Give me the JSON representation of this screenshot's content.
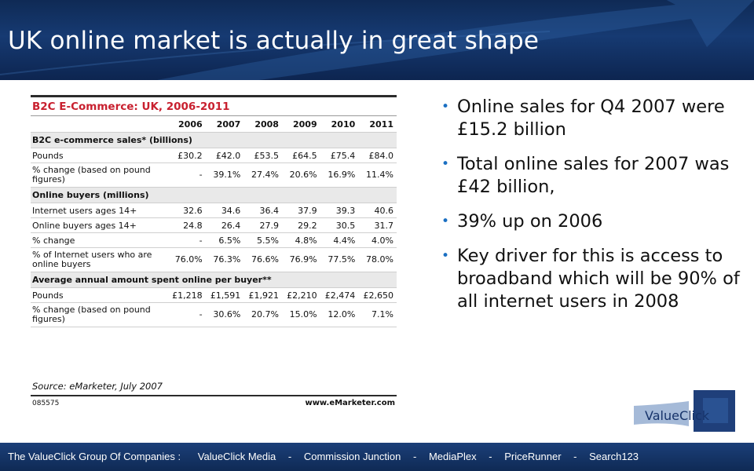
{
  "slide": {
    "title": "UK online market is actually in great shape"
  },
  "table": {
    "title": "B2C E-Commerce: UK, 2006-2011",
    "years": [
      "2006",
      "2007",
      "2008",
      "2009",
      "2010",
      "2011"
    ],
    "sections": [
      {
        "heading": "B2C e-commerce sales* (billions)",
        "rows": [
          {
            "label": "Pounds",
            "values": [
              "£30.2",
              "£42.0",
              "£53.5",
              "£64.5",
              "£75.4",
              "£84.0"
            ]
          },
          {
            "label": "% change (based on pound figures)",
            "values": [
              "-",
              "39.1%",
              "27.4%",
              "20.6%",
              "16.9%",
              "11.4%"
            ]
          }
        ]
      },
      {
        "heading": "Online buyers (millions)",
        "rows": [
          {
            "label": "Internet users ages 14+",
            "values": [
              "32.6",
              "34.6",
              "36.4",
              "37.9",
              "39.3",
              "40.6"
            ]
          },
          {
            "label": "Online buyers ages 14+",
            "values": [
              "24.8",
              "26.4",
              "27.9",
              "29.2",
              "30.5",
              "31.7"
            ]
          },
          {
            "label": "% change",
            "values": [
              "-",
              "6.5%",
              "5.5%",
              "4.8%",
              "4.4%",
              "4.0%"
            ]
          },
          {
            "label": "% of Internet users who are online buyers",
            "values": [
              "76.0%",
              "76.3%",
              "76.6%",
              "76.9%",
              "77.5%",
              "78.0%"
            ]
          }
        ]
      },
      {
        "heading": "Average annual amount spent online per buyer**",
        "rows": [
          {
            "label": "Pounds",
            "values": [
              "£1,218",
              "£1,591",
              "£1,921",
              "£2,210",
              "£2,474",
              "£2,650"
            ]
          },
          {
            "label": "% change (based on pound figures)",
            "values": [
              "-",
              "30.6%",
              "20.7%",
              "15.0%",
              "12.0%",
              "7.1%"
            ]
          }
        ]
      }
    ],
    "source": "Source: eMarketer, July 2007",
    "code": "085575",
    "site": "www.eMarketer.com"
  },
  "bullets": [
    "Online sales for Q4 2007 were £15.2 billion",
    "Total online sales for 2007 was £42 billion,",
    "39% up on 2006",
    "Key driver for this is access to broadband which will be 90% of all internet users in 2008"
  ],
  "logo": {
    "text": "ValueClick",
    "icon": "valueclick-logo"
  },
  "footer": {
    "lead": "The ValueClick Group Of Companies :",
    "companies": [
      "ValueClick Media",
      "Commission Junction",
      "MediaPlex",
      "PriceRunner",
      "Search123"
    ],
    "separator": "-"
  },
  "colors": {
    "header_bg": "#163a72",
    "table_title": "#c8202f",
    "bullet": "#1a6fc2"
  }
}
